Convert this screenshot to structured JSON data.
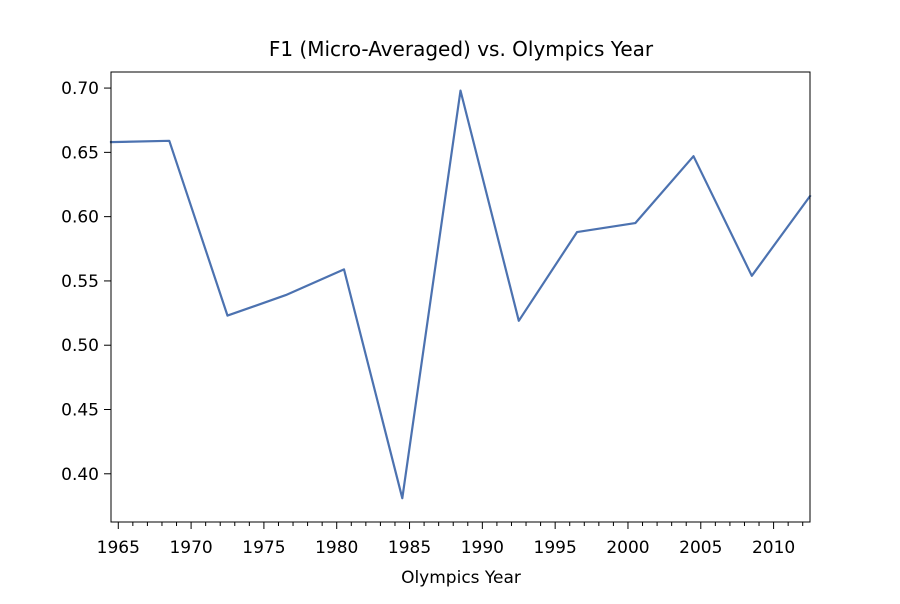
{
  "chart_data": {
    "type": "line",
    "title": "F1 (Micro-Averaged) vs. Olympics Year",
    "xlabel": "Olympics Year",
    "ylabel": "",
    "xlim": [
      1964.5,
      2012.5
    ],
    "ylim": [
      0.3625,
      0.7125
    ],
    "x_ticks": [
      1965,
      1970,
      1975,
      1980,
      1985,
      1990,
      1995,
      2000,
      2005,
      2010
    ],
    "x_tick_labels": [
      "1965",
      "1970",
      "1975",
      "1980",
      "1985",
      "1990",
      "1995",
      "2000",
      "2005",
      "2010"
    ],
    "x_minor_step": 1,
    "y_ticks": [
      0.4,
      0.45,
      0.5,
      0.55,
      0.6,
      0.65,
      0.7
    ],
    "y_tick_labels": [
      "0.40",
      "0.45",
      "0.50",
      "0.55",
      "0.60",
      "0.65",
      "0.70"
    ],
    "grid": false,
    "legend": "none",
    "series": [
      {
        "color": "#4c72b0",
        "x": [
          1964.5,
          1968.5,
          1972.5,
          1976.5,
          1980.5,
          1984.5,
          1988.5,
          1992.5,
          1996.5,
          2000.5,
          2004.5,
          2008.5,
          2012.5
        ],
        "y": [
          0.658,
          0.659,
          0.523,
          0.539,
          0.559,
          0.381,
          0.698,
          0.519,
          0.588,
          0.595,
          0.647,
          0.554,
          0.616
        ]
      }
    ]
  }
}
